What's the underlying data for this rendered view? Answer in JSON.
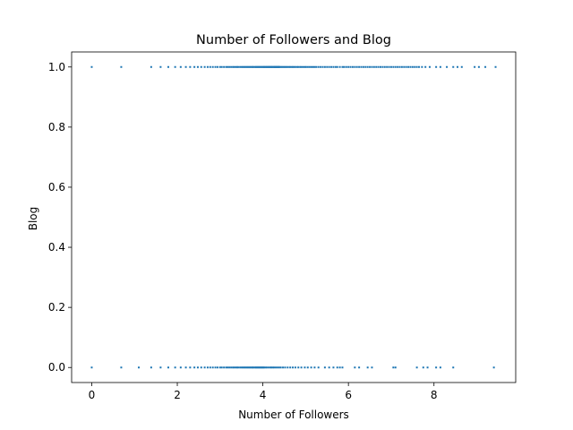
{
  "chart_data": {
    "type": "scatter",
    "title": "Number of Followers and Blog",
    "xlabel": "Number of Followers",
    "ylabel": "Blog",
    "xlim": [
      -0.47,
      9.91
    ],
    "ylim": [
      -0.05,
      1.05
    ],
    "xticks": [
      0,
      2,
      4,
      6,
      8
    ],
    "yticks": [
      0.0,
      0.2,
      0.4,
      0.6,
      0.8,
      1.0
    ],
    "xtick_labels": [
      "0",
      "2",
      "4",
      "6",
      "8"
    ],
    "ytick_labels": [
      "0.0",
      "0.2",
      "0.4",
      "0.6",
      "0.8",
      "1.0"
    ],
    "grid": false,
    "legend": "none",
    "series": [
      {
        "color": "#1f77b4",
        "points": [
          [
            0.0,
            1
          ],
          [
            0.69,
            1
          ],
          [
            1.39,
            1
          ],
          [
            1.61,
            1
          ],
          [
            1.79,
            1
          ],
          [
            1.95,
            1
          ],
          [
            2.08,
            1
          ],
          [
            2.2,
            1
          ],
          [
            2.3,
            1
          ],
          [
            2.4,
            1
          ],
          [
            2.48,
            1
          ],
          [
            2.56,
            1
          ],
          [
            2.64,
            1
          ],
          [
            2.71,
            1
          ],
          [
            2.77,
            1
          ],
          [
            2.83,
            1
          ],
          [
            2.89,
            1
          ],
          [
            2.94,
            1
          ],
          [
            3.0,
            1
          ],
          [
            3.04,
            1
          ],
          [
            3.09,
            1
          ],
          [
            3.14,
            1
          ],
          [
            3.18,
            1
          ],
          [
            3.22,
            1
          ],
          [
            3.26,
            1
          ],
          [
            3.3,
            1
          ],
          [
            3.33,
            1
          ],
          [
            3.37,
            1
          ],
          [
            3.4,
            1
          ],
          [
            3.43,
            1
          ],
          [
            3.47,
            1
          ],
          [
            3.5,
            1
          ],
          [
            3.53,
            1
          ],
          [
            3.56,
            1
          ],
          [
            3.58,
            1
          ],
          [
            3.61,
            1
          ],
          [
            3.64,
            1
          ],
          [
            3.66,
            1
          ],
          [
            3.69,
            1
          ],
          [
            3.71,
            1
          ],
          [
            3.74,
            1
          ],
          [
            3.76,
            1
          ],
          [
            3.78,
            1
          ],
          [
            3.81,
            1
          ],
          [
            3.83,
            1
          ],
          [
            3.85,
            1
          ],
          [
            3.87,
            1
          ],
          [
            3.89,
            1
          ],
          [
            3.91,
            1
          ],
          [
            3.93,
            1
          ],
          [
            3.95,
            1
          ],
          [
            3.97,
            1
          ],
          [
            3.99,
            1
          ],
          [
            4.01,
            1
          ],
          [
            4.03,
            1
          ],
          [
            4.04,
            1
          ],
          [
            4.06,
            1
          ],
          [
            4.08,
            1
          ],
          [
            4.09,
            1
          ],
          [
            4.11,
            1
          ],
          [
            4.13,
            1
          ],
          [
            4.14,
            1
          ],
          [
            4.16,
            1
          ],
          [
            4.17,
            1
          ],
          [
            4.19,
            1
          ],
          [
            4.2,
            1
          ],
          [
            4.22,
            1
          ],
          [
            4.23,
            1
          ],
          [
            4.25,
            1
          ],
          [
            4.26,
            1
          ],
          [
            4.28,
            1
          ],
          [
            4.29,
            1
          ],
          [
            4.3,
            1
          ],
          [
            4.32,
            1
          ],
          [
            4.33,
            1
          ],
          [
            4.34,
            1
          ],
          [
            4.36,
            1
          ],
          [
            4.37,
            1
          ],
          [
            4.38,
            1
          ],
          [
            4.39,
            1
          ],
          [
            4.42,
            1
          ],
          [
            4.44,
            1
          ],
          [
            4.47,
            1
          ],
          [
            4.5,
            1
          ],
          [
            4.52,
            1
          ],
          [
            4.55,
            1
          ],
          [
            4.58,
            1
          ],
          [
            4.61,
            1
          ],
          [
            4.64,
            1
          ],
          [
            4.67,
            1
          ],
          [
            4.7,
            1
          ],
          [
            4.73,
            1
          ],
          [
            4.76,
            1
          ],
          [
            4.8,
            1
          ],
          [
            4.83,
            1
          ],
          [
            4.87,
            1
          ],
          [
            4.9,
            1
          ],
          [
            4.94,
            1
          ],
          [
            4.98,
            1
          ],
          [
            5.01,
            1
          ],
          [
            5.05,
            1
          ],
          [
            5.09,
            1
          ],
          [
            5.13,
            1
          ],
          [
            5.17,
            1
          ],
          [
            5.21,
            1
          ],
          [
            5.25,
            1
          ],
          [
            5.3,
            1
          ],
          [
            5.35,
            1
          ],
          [
            5.4,
            1
          ],
          [
            5.45,
            1
          ],
          [
            5.5,
            1
          ],
          [
            5.55,
            1
          ],
          [
            5.6,
            1
          ],
          [
            5.65,
            1
          ],
          [
            5.7,
            1
          ],
          [
            5.74,
            1
          ],
          [
            5.8,
            1
          ],
          [
            5.86,
            1
          ],
          [
            5.9,
            1
          ],
          [
            5.95,
            1
          ],
          [
            6.0,
            1
          ],
          [
            6.05,
            1
          ],
          [
            6.1,
            1
          ],
          [
            6.15,
            1
          ],
          [
            6.2,
            1
          ],
          [
            6.25,
            1
          ],
          [
            6.3,
            1
          ],
          [
            6.35,
            1
          ],
          [
            6.4,
            1
          ],
          [
            6.45,
            1
          ],
          [
            6.5,
            1
          ],
          [
            6.55,
            1
          ],
          [
            6.6,
            1
          ],
          [
            6.65,
            1
          ],
          [
            6.7,
            1
          ],
          [
            6.75,
            1
          ],
          [
            6.8,
            1
          ],
          [
            6.85,
            1
          ],
          [
            6.9,
            1
          ],
          [
            6.95,
            1
          ],
          [
            7.0,
            1
          ],
          [
            7.05,
            1
          ],
          [
            7.1,
            1
          ],
          [
            7.15,
            1
          ],
          [
            7.2,
            1
          ],
          [
            7.25,
            1
          ],
          [
            7.3,
            1
          ],
          [
            7.35,
            1
          ],
          [
            7.4,
            1
          ],
          [
            7.45,
            1
          ],
          [
            7.5,
            1
          ],
          [
            7.55,
            1
          ],
          [
            7.6,
            1
          ],
          [
            7.65,
            1
          ],
          [
            7.72,
            1
          ],
          [
            7.8,
            1
          ],
          [
            7.9,
            1
          ],
          [
            8.05,
            1
          ],
          [
            8.15,
            1
          ],
          [
            8.3,
            1
          ],
          [
            8.45,
            1
          ],
          [
            8.55,
            1
          ],
          [
            8.65,
            1
          ],
          [
            8.95,
            1
          ],
          [
            9.05,
            1
          ],
          [
            9.2,
            1
          ],
          [
            9.44,
            1
          ],
          [
            0.0,
            0
          ],
          [
            0.69,
            0
          ],
          [
            1.1,
            0
          ],
          [
            1.39,
            0
          ],
          [
            1.61,
            0
          ],
          [
            1.79,
            0
          ],
          [
            1.95,
            0
          ],
          [
            2.08,
            0
          ],
          [
            2.2,
            0
          ],
          [
            2.3,
            0
          ],
          [
            2.4,
            0
          ],
          [
            2.48,
            0
          ],
          [
            2.56,
            0
          ],
          [
            2.64,
            0
          ],
          [
            2.71,
            0
          ],
          [
            2.77,
            0
          ],
          [
            2.83,
            0
          ],
          [
            2.89,
            0
          ],
          [
            2.94,
            0
          ],
          [
            3.0,
            0
          ],
          [
            3.04,
            0
          ],
          [
            3.09,
            0
          ],
          [
            3.14,
            0
          ],
          [
            3.18,
            0
          ],
          [
            3.22,
            0
          ],
          [
            3.26,
            0
          ],
          [
            3.3,
            0
          ],
          [
            3.33,
            0
          ],
          [
            3.37,
            0
          ],
          [
            3.4,
            0
          ],
          [
            3.43,
            0
          ],
          [
            3.47,
            0
          ],
          [
            3.5,
            0
          ],
          [
            3.53,
            0
          ],
          [
            3.56,
            0
          ],
          [
            3.58,
            0
          ],
          [
            3.61,
            0
          ],
          [
            3.64,
            0
          ],
          [
            3.66,
            0
          ],
          [
            3.69,
            0
          ],
          [
            3.71,
            0
          ],
          [
            3.74,
            0
          ],
          [
            3.76,
            0
          ],
          [
            3.78,
            0
          ],
          [
            3.81,
            0
          ],
          [
            3.83,
            0
          ],
          [
            3.85,
            0
          ],
          [
            3.87,
            0
          ],
          [
            3.89,
            0
          ],
          [
            3.91,
            0
          ],
          [
            3.93,
            0
          ],
          [
            3.95,
            0
          ],
          [
            3.97,
            0
          ],
          [
            3.99,
            0
          ],
          [
            4.01,
            0
          ],
          [
            4.03,
            0
          ],
          [
            4.06,
            0
          ],
          [
            4.09,
            0
          ],
          [
            4.13,
            0
          ],
          [
            4.17,
            0
          ],
          [
            4.2,
            0
          ],
          [
            4.23,
            0
          ],
          [
            4.26,
            0
          ],
          [
            4.3,
            0
          ],
          [
            4.34,
            0
          ],
          [
            4.38,
            0
          ],
          [
            4.42,
            0
          ],
          [
            4.47,
            0
          ],
          [
            4.52,
            0
          ],
          [
            4.58,
            0
          ],
          [
            4.64,
            0
          ],
          [
            4.7,
            0
          ],
          [
            4.76,
            0
          ],
          [
            4.83,
            0
          ],
          [
            4.9,
            0
          ],
          [
            4.98,
            0
          ],
          [
            5.05,
            0
          ],
          [
            5.13,
            0
          ],
          [
            5.21,
            0
          ],
          [
            5.3,
            0
          ],
          [
            5.45,
            0
          ],
          [
            5.55,
            0
          ],
          [
            5.65,
            0
          ],
          [
            5.74,
            0
          ],
          [
            5.8,
            0
          ],
          [
            5.86,
            0
          ],
          [
            6.15,
            0
          ],
          [
            6.25,
            0
          ],
          [
            6.45,
            0
          ],
          [
            6.55,
            0
          ],
          [
            7.05,
            0
          ],
          [
            7.1,
            0
          ],
          [
            7.6,
            0
          ],
          [
            7.75,
            0
          ],
          [
            7.85,
            0
          ],
          [
            8.05,
            0
          ],
          [
            8.15,
            0
          ],
          [
            8.45,
            0
          ],
          [
            9.4,
            0
          ]
        ]
      }
    ]
  }
}
